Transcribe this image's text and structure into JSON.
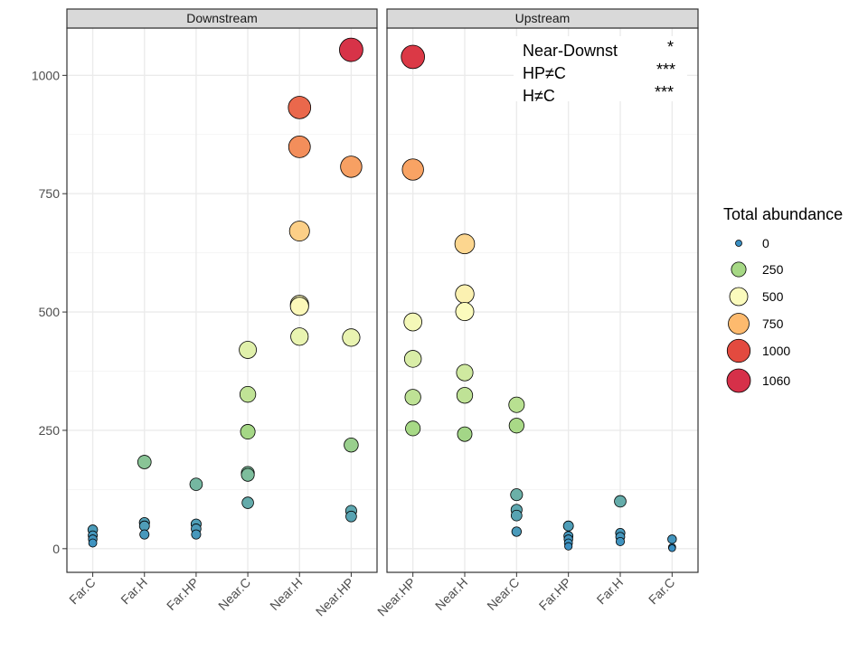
{
  "chart_data": {
    "type": "scatter",
    "title": "",
    "xlabel": "",
    "ylabel": "",
    "ylim": [
      -50,
      1100
    ],
    "yticks": [
      0,
      250,
      500,
      750,
      1000
    ],
    "legend": {
      "title": "Total abundance",
      "position": "right",
      "entries": [
        {
          "label": "0",
          "value": 0,
          "color": "#3a8fc3"
        },
        {
          "label": "250",
          "value": 250,
          "color": "#a6d885"
        },
        {
          "label": "500",
          "value": 500,
          "color": "#fbfbbd"
        },
        {
          "label": "750",
          "value": 750,
          "color": "#fdba6e"
        },
        {
          "label": "1000",
          "value": 1000,
          "color": "#e34a3f"
        },
        {
          "label": "1060",
          "value": 1060,
          "color": "#d63049"
        }
      ]
    },
    "panels": [
      {
        "strip": "Downstream",
        "categories": [
          "Far.C",
          "Far.H",
          "Far.HP",
          "Near.C",
          "Near.H",
          "Near.HP"
        ],
        "points": [
          {
            "x": "Far.C",
            "y": 40
          },
          {
            "x": "Far.C",
            "y": 28
          },
          {
            "x": "Far.C",
            "y": 20
          },
          {
            "x": "Far.C",
            "y": 12
          },
          {
            "x": "Far.H",
            "y": 183
          },
          {
            "x": "Far.H",
            "y": 55
          },
          {
            "x": "Far.H",
            "y": 48
          },
          {
            "x": "Far.H",
            "y": 30
          },
          {
            "x": "Far.HP",
            "y": 136
          },
          {
            "x": "Far.HP",
            "y": 52
          },
          {
            "x": "Far.HP",
            "y": 42
          },
          {
            "x": "Far.HP",
            "y": 30
          },
          {
            "x": "Near.C",
            "y": 420
          },
          {
            "x": "Near.C",
            "y": 326
          },
          {
            "x": "Near.C",
            "y": 247
          },
          {
            "x": "Near.C",
            "y": 160
          },
          {
            "x": "Near.C",
            "y": 156
          },
          {
            "x": "Near.C",
            "y": 97
          },
          {
            "x": "Near.H",
            "y": 932
          },
          {
            "x": "Near.H",
            "y": 849
          },
          {
            "x": "Near.H",
            "y": 671
          },
          {
            "x": "Near.H",
            "y": 516
          },
          {
            "x": "Near.H",
            "y": 512
          },
          {
            "x": "Near.H",
            "y": 448
          },
          {
            "x": "Near.HP",
            "y": 1054
          },
          {
            "x": "Near.HP",
            "y": 807
          },
          {
            "x": "Near.HP",
            "y": 446
          },
          {
            "x": "Near.HP",
            "y": 219
          },
          {
            "x": "Near.HP",
            "y": 80
          },
          {
            "x": "Near.HP",
            "y": 68
          }
        ]
      },
      {
        "strip": "Upstream",
        "categories": [
          "Near.HP",
          "Near.H",
          "Near.C",
          "Far.HP",
          "Far.H",
          "Far.C"
        ],
        "points": [
          {
            "x": "Near.HP",
            "y": 1039
          },
          {
            "x": "Near.HP",
            "y": 801
          },
          {
            "x": "Near.HP",
            "y": 479
          },
          {
            "x": "Near.HP",
            "y": 401
          },
          {
            "x": "Near.HP",
            "y": 320
          },
          {
            "x": "Near.HP",
            "y": 254
          },
          {
            "x": "Near.H",
            "y": 644
          },
          {
            "x": "Near.H",
            "y": 538
          },
          {
            "x": "Near.H",
            "y": 501
          },
          {
            "x": "Near.H",
            "y": 372
          },
          {
            "x": "Near.H",
            "y": 324
          },
          {
            "x": "Near.H",
            "y": 242
          },
          {
            "x": "Near.C",
            "y": 304
          },
          {
            "x": "Near.C",
            "y": 260
          },
          {
            "x": "Near.C",
            "y": 114
          },
          {
            "x": "Near.C",
            "y": 82
          },
          {
            "x": "Near.C",
            "y": 70
          },
          {
            "x": "Near.C",
            "y": 36
          },
          {
            "x": "Far.HP",
            "y": 48
          },
          {
            "x": "Far.HP",
            "y": 27
          },
          {
            "x": "Far.HP",
            "y": 20
          },
          {
            "x": "Far.HP",
            "y": 12
          },
          {
            "x": "Far.HP",
            "y": 5
          },
          {
            "x": "Far.H",
            "y": 100
          },
          {
            "x": "Far.H",
            "y": 33
          },
          {
            "x": "Far.H",
            "y": 25
          },
          {
            "x": "Far.H",
            "y": 15
          },
          {
            "x": "Far.C",
            "y": 20
          },
          {
            "x": "Far.C",
            "y": 3
          },
          {
            "x": "Far.C",
            "y": 1
          }
        ],
        "annotations": [
          {
            "label": "Near-Downst",
            "sig": "*"
          },
          {
            "label": "HP≠C",
            "sig": "***"
          },
          {
            "label": "H≠C",
            "sig": "***"
          }
        ]
      }
    ]
  }
}
